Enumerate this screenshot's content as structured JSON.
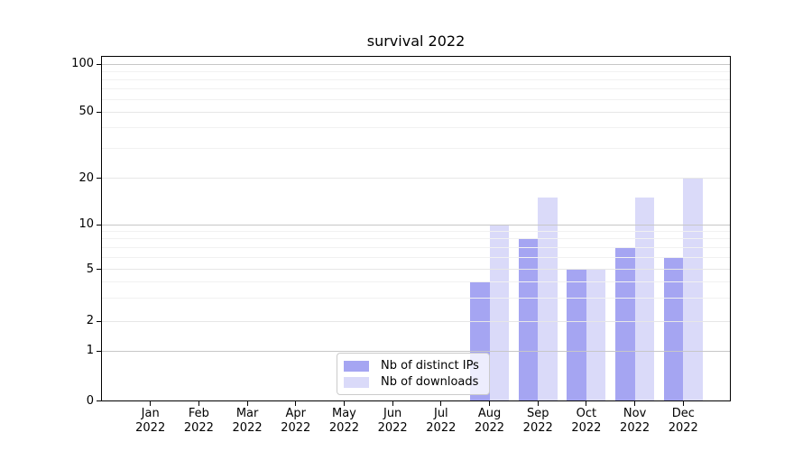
{
  "title": "survival 2022",
  "chart_data": {
    "type": "bar",
    "title": "survival 2022",
    "categories": [
      "Jan",
      "Feb",
      "Mar",
      "Apr",
      "May",
      "Jun",
      "Jul",
      "Aug",
      "Sep",
      "Oct",
      "Nov",
      "Dec"
    ],
    "category_year": "2022",
    "series": [
      {
        "name": "Nb of distinct IPs",
        "color": "#a5a5f2",
        "values": [
          0,
          0,
          0,
          0,
          0,
          0,
          0,
          4,
          8,
          5,
          7,
          6
        ]
      },
      {
        "name": "Nb of downloads",
        "color": "#dadaf9",
        "values": [
          0,
          0,
          0,
          0,
          0,
          0,
          0,
          10,
          15,
          5,
          15,
          20
        ]
      }
    ],
    "yticks": [
      0,
      1,
      2,
      5,
      10,
      20,
      50,
      100
    ],
    "minor_yticks": [
      3,
      4,
      6,
      7,
      8,
      9,
      30,
      40,
      60,
      70,
      80,
      90
    ],
    "major_grid_values": [
      1,
      10,
      100
    ],
    "mid_grid_values": [
      2,
      5,
      20,
      50
    ],
    "yscale": "symlog",
    "ylim": [
      0,
      112
    ],
    "xlabel": "",
    "ylabel": "",
    "grid": true,
    "legend_position": "lower center"
  }
}
